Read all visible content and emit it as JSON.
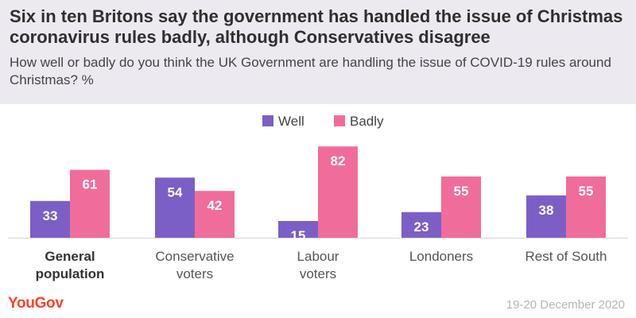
{
  "header": {
    "title": "Six in ten Britons say the government has handled the issue of Christmas coronavirus rules badly, although Conservatives disagree",
    "subtitle": "How well or badly do you think the UK Government are handling the issue of COVID-19 rules around Christmas? %"
  },
  "footer": {
    "brand": "YouGov",
    "date": "19-20 December 2020"
  },
  "colors": {
    "well": "#7b5fc6",
    "badly": "#f06c9b",
    "brand": "#ff412c"
  },
  "chart_data": {
    "type": "bar",
    "categories": [
      [
        "General",
        "population"
      ],
      [
        "Conservative",
        "voters"
      ],
      [
        "Labour",
        "voters"
      ],
      [
        "Londoners"
      ],
      [
        "Rest of South"
      ]
    ],
    "bold_category_index": 0,
    "series": [
      {
        "name": "Well",
        "values": [
          33,
          54,
          15,
          23,
          38
        ]
      },
      {
        "name": "Badly",
        "values": [
          61,
          42,
          82,
          55,
          55
        ]
      }
    ],
    "ylim": [
      0,
      100
    ],
    "grid": false,
    "legend": "top-center",
    "data_labels": true
  }
}
